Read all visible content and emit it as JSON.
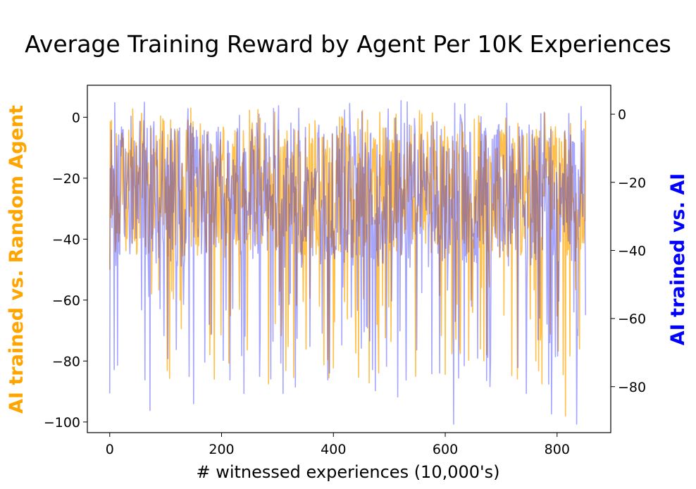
{
  "chart_data": {
    "type": "line",
    "title": "Average Training Reward by Agent Per 10K Experiences",
    "xlabel": "# witnessed experiences (10,000's)",
    "ylabel_left": "AI trained vs. Random Agent",
    "ylabel_right": "AI trained vs. AI",
    "xlim": [
      -40,
      896
    ],
    "ylim_left": [
      -103.5,
      10.5
    ],
    "ylim_right": [
      -93.5,
      8.5
    ],
    "x_ticks": [
      0,
      200,
      400,
      600,
      800
    ],
    "y_ticks_left": [
      0,
      -20,
      -40,
      -60,
      -80,
      -100
    ],
    "y_ticks_right": [
      0,
      -20,
      -40,
      -60,
      -80
    ],
    "grid": false,
    "legend": "none",
    "series": [
      {
        "axis": "left",
        "color": "#ffa500",
        "opacity": 0.7,
        "n_points": 852,
        "x_range": [
          0,
          851
        ],
        "y_range": [
          -98,
          3
        ],
        "mean": -25,
        "keypoints": [
          {
            "x": 0,
            "y": -50
          },
          {
            "x": 3,
            "y": -1
          },
          {
            "x": 145,
            "y": 3
          },
          {
            "x": 232,
            "y": -63
          },
          {
            "x": 375,
            "y": -62
          },
          {
            "x": 478,
            "y": -68
          },
          {
            "x": 613,
            "y": -64
          },
          {
            "x": 663,
            "y": -76
          },
          {
            "x": 705,
            "y": -65
          },
          {
            "x": 730,
            "y": -2
          },
          {
            "x": 762,
            "y": -80
          },
          {
            "x": 815,
            "y": -98
          },
          {
            "x": 840,
            "y": -76
          },
          {
            "x": 851,
            "y": -1
          }
        ]
      },
      {
        "axis": "right",
        "color": "#0000ff",
        "opacity": 0.35,
        "n_points": 852,
        "x_range": [
          0,
          851
        ],
        "y_range": [
          -91,
          4
        ],
        "mean": -24,
        "keypoints": [
          {
            "x": 0,
            "y": -82
          },
          {
            "x": 8,
            "y": -75
          },
          {
            "x": 63,
            "y": -78
          },
          {
            "x": 72,
            "y": -87
          },
          {
            "x": 142,
            "y": -77
          },
          {
            "x": 150,
            "y": -85
          },
          {
            "x": 215,
            "y": -78
          },
          {
            "x": 240,
            "y": -82
          },
          {
            "x": 268,
            "y": -77
          },
          {
            "x": 310,
            "y": -82
          },
          {
            "x": 390,
            "y": -78
          },
          {
            "x": 470,
            "y": -75
          },
          {
            "x": 515,
            "y": -83
          },
          {
            "x": 521,
            "y": 4
          },
          {
            "x": 590,
            "y": -76
          },
          {
            "x": 615,
            "y": -91
          },
          {
            "x": 635,
            "y": 3
          },
          {
            "x": 680,
            "y": -80
          },
          {
            "x": 745,
            "y": -82
          },
          {
            "x": 790,
            "y": -88
          },
          {
            "x": 835,
            "y": -91
          },
          {
            "x": 851,
            "y": -59
          }
        ]
      }
    ]
  }
}
